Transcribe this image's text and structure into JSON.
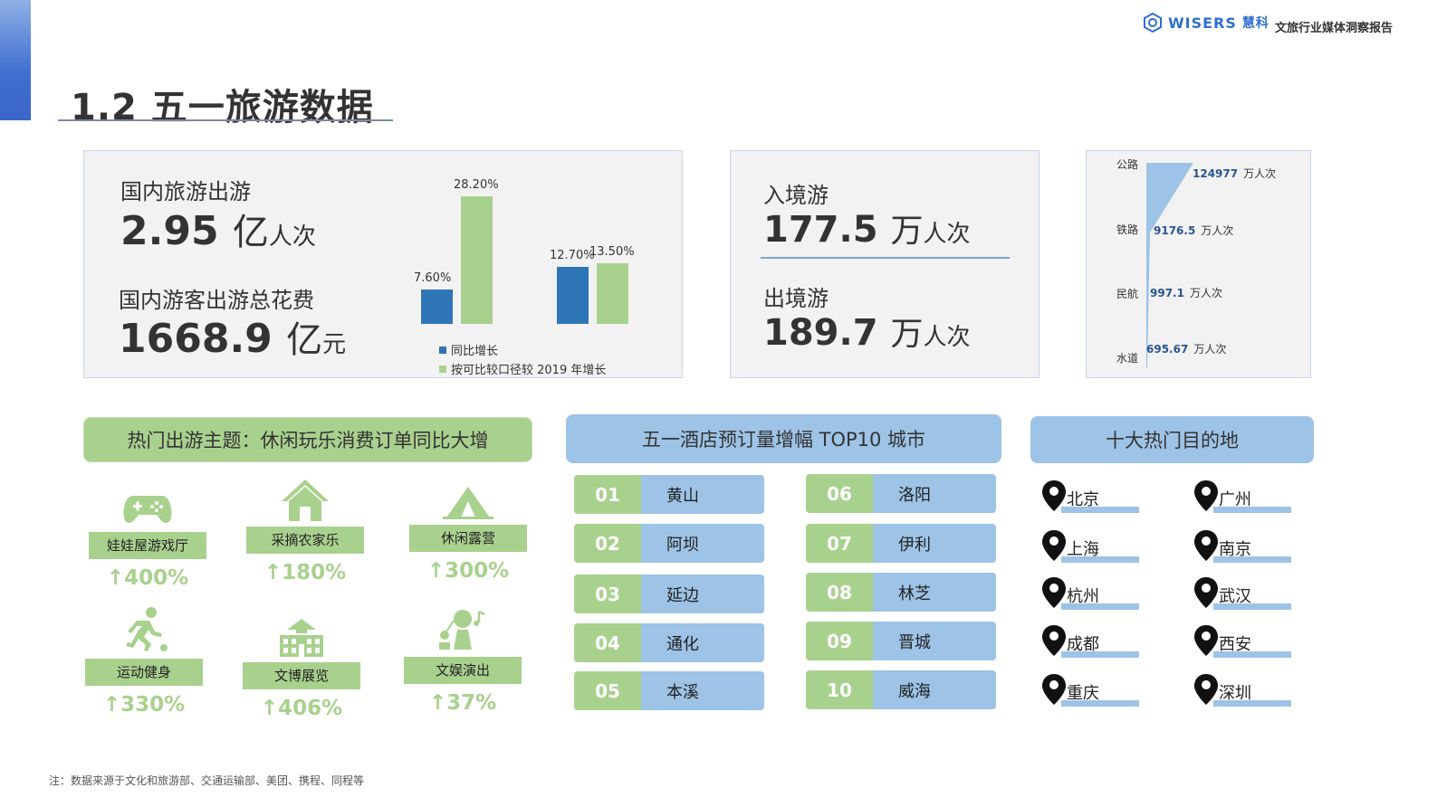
{
  "brand": {
    "logo_text": "WISERS",
    "logo_cn": "慧科",
    "report": "文旅行业媒体洞察报告"
  },
  "page_title": "1.2  五一旅游数据",
  "domestic": {
    "trips_label": "国内旅游出游",
    "trips_value": "2.95",
    "trips_unit1": "亿",
    "trips_unit2": "人次",
    "spend_label": "国内游客出游总花费",
    "spend_value": "1668.9",
    "spend_unit1": "亿",
    "spend_unit2": "元"
  },
  "chart_data": {
    "type": "bar",
    "categories": [
      "",
      ""
    ],
    "series": [
      {
        "name": "同比增长",
        "values": [
          7.6,
          12.7
        ],
        "labels": [
          "7.60%",
          "12.70%"
        ],
        "color": "#2e75b6"
      },
      {
        "name": "按可比较口径较 2019 年增长",
        "values": [
          28.2,
          13.5
        ],
        "labels": [
          "28.20%",
          "13.50%"
        ],
        "color": "#a9d18e"
      }
    ],
    "ylim": [
      0,
      30
    ]
  },
  "border": {
    "inbound_label": "入境游",
    "inbound_value": "177.5",
    "inbound_unit1": "万",
    "inbound_unit2": "人次",
    "outbound_label": "出境游",
    "outbound_value": "189.7",
    "outbound_unit1": "万",
    "outbound_unit2": "人次"
  },
  "transport": {
    "items": [
      {
        "label": "公路",
        "value": "124977",
        "unit": "万人次"
      },
      {
        "label": "铁路",
        "value": "9176.5",
        "unit": "万人次"
      },
      {
        "label": "民航",
        "value": "997.1",
        "unit": "万人次"
      },
      {
        "label": "水道",
        "value": "695.67",
        "unit": "万人次"
      }
    ],
    "color": "#9dc3e6"
  },
  "themes": {
    "header": "热门出游主题：休闲玩乐消费订单同比大增",
    "items": [
      {
        "icon": "gamepad-icon",
        "name": "娃娃屋游戏厅",
        "pct": "↑400%"
      },
      {
        "icon": "farmhouse-icon",
        "name": "采摘农家乐",
        "pct": "↑180%"
      },
      {
        "icon": "tent-icon",
        "name": "休闲露营",
        "pct": "↑300%"
      },
      {
        "icon": "runner-icon",
        "name": "运动健身",
        "pct": "↑330%"
      },
      {
        "icon": "museum-icon",
        "name": "文博展览",
        "pct": "↑406%"
      },
      {
        "icon": "performer-icon",
        "name": "文娱演出",
        "pct": "↑37%"
      }
    ],
    "accent": "#a9d18e"
  },
  "hotels": {
    "header": "五一酒店预订量增幅 TOP10 城市",
    "items": [
      {
        "num": "01",
        "city": "黄山"
      },
      {
        "num": "02",
        "city": "阿坝"
      },
      {
        "num": "03",
        "city": "延边"
      },
      {
        "num": "04",
        "city": "通化"
      },
      {
        "num": "05",
        "city": "本溪"
      },
      {
        "num": "06",
        "city": "洛阳"
      },
      {
        "num": "07",
        "city": "伊利"
      },
      {
        "num": "08",
        "city": "林芝"
      },
      {
        "num": "09",
        "city": "晋城"
      },
      {
        "num": "10",
        "city": "威海"
      }
    ]
  },
  "destinations": {
    "header": "十大热门目的地",
    "items": [
      "北京",
      "广州",
      "上海",
      "南京",
      "杭州",
      "武汉",
      "成都",
      "西安",
      "重庆",
      "深圳"
    ]
  },
  "footnote": "注：数据来源于文化和旅游部、交通运输部、美团、携程、同程等"
}
